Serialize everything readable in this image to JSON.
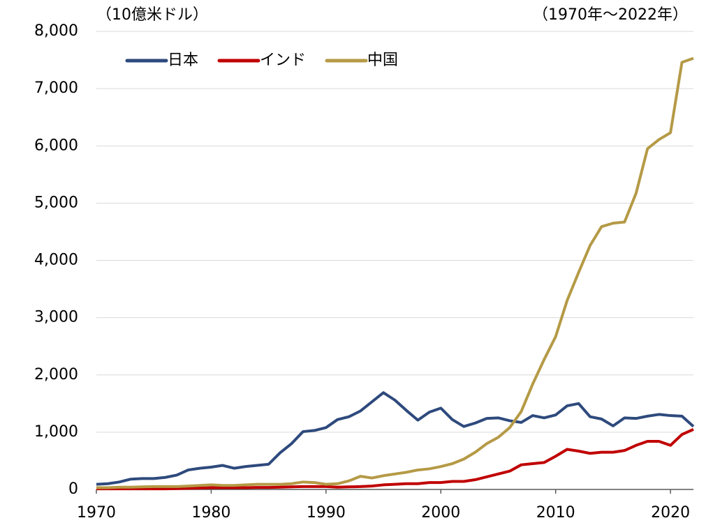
{
  "chart_data": {
    "type": "line",
    "unit_label": "（10億米ドル）",
    "period_label": "（1970年～2022年）",
    "x": [
      1970,
      1971,
      1972,
      1973,
      1974,
      1975,
      1976,
      1977,
      1978,
      1979,
      1980,
      1981,
      1982,
      1983,
      1984,
      1985,
      1986,
      1987,
      1988,
      1989,
      1990,
      1991,
      1992,
      1993,
      1994,
      1995,
      1996,
      1997,
      1998,
      1999,
      2000,
      2001,
      2002,
      2003,
      2004,
      2005,
      2006,
      2007,
      2008,
      2009,
      2010,
      2011,
      2012,
      2013,
      2014,
      2015,
      2016,
      2017,
      2018,
      2019,
      2020,
      2021,
      2022
    ],
    "series": [
      {
        "name": "日本",
        "color": "#2e4a7d",
        "values": [
          90,
          100,
          130,
          180,
          190,
          190,
          210,
          250,
          340,
          370,
          390,
          420,
          370,
          400,
          420,
          440,
          640,
          800,
          1010,
          1030,
          1080,
          1220,
          1270,
          1370,
          1530,
          1690,
          1560,
          1380,
          1210,
          1350,
          1420,
          1220,
          1100,
          1160,
          1240,
          1250,
          1200,
          1170,
          1290,
          1250,
          1300,
          1460,
          1500,
          1270,
          1230,
          1110,
          1250,
          1240,
          1280,
          1310,
          1290,
          1280,
          1100
        ]
      },
      {
        "name": "インド",
        "color": "#c00000",
        "values": [
          10,
          10,
          10,
          10,
          10,
          10,
          10,
          15,
          20,
          25,
          30,
          30,
          30,
          30,
          35,
          35,
          40,
          45,
          50,
          50,
          50,
          40,
          45,
          50,
          60,
          80,
          90,
          100,
          100,
          120,
          120,
          140,
          140,
          170,
          220,
          270,
          320,
          430,
          450,
          470,
          580,
          700,
          670,
          630,
          650,
          650,
          680,
          770,
          840,
          840,
          770,
          960,
          1050
        ]
      },
      {
        "name": "中国",
        "color": "#b59a46",
        "values": [
          30,
          30,
          40,
          40,
          45,
          50,
          50,
          50,
          60,
          70,
          80,
          70,
          70,
          80,
          90,
          90,
          90,
          100,
          130,
          120,
          90,
          100,
          150,
          230,
          200,
          240,
          270,
          300,
          340,
          360,
          400,
          450,
          530,
          650,
          800,
          910,
          1080,
          1360,
          1840,
          2270,
          2670,
          3300,
          3790,
          4260,
          4590,
          4650,
          4670,
          5170,
          5950,
          6110,
          6230,
          7460,
          7530
        ]
      }
    ],
    "xlim": [
      1970,
      2022
    ],
    "xticks": [
      1970,
      1980,
      1990,
      2000,
      2010,
      2020
    ],
    "ylim": [
      0,
      8000
    ],
    "yticks": [
      0,
      {
        "value": 1000,
        "label": "1,000"
      },
      {
        "value": 2000,
        "label": "2,000"
      },
      {
        "value": 3000,
        "label": "3,000"
      },
      {
        "value": 4000,
        "label": "4,000"
      },
      {
        "value": 5000,
        "label": "5,000"
      },
      {
        "value": 6000,
        "label": "6,000"
      },
      {
        "value": 7000,
        "label": "7,000"
      },
      {
        "value": 8000,
        "label": "8,000"
      }
    ],
    "grid": true,
    "legend": "top-left"
  }
}
